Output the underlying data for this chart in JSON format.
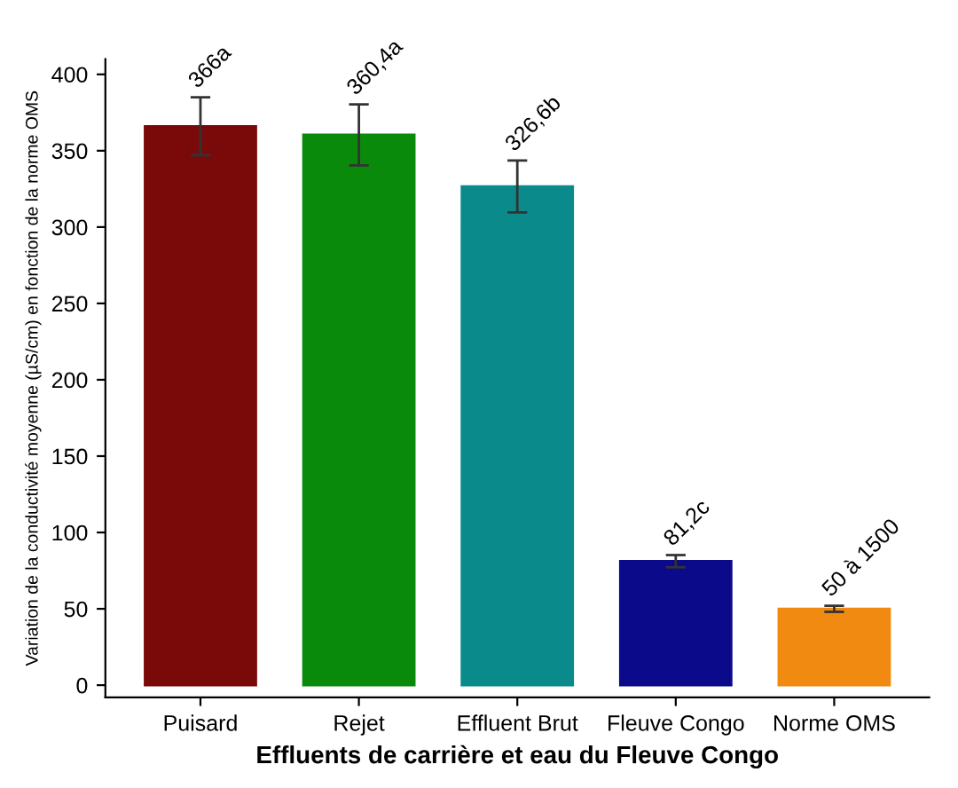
{
  "chart_data": {
    "type": "bar",
    "xlabel": "Effluents de carrière et eau du Fleuve Congo",
    "ylabel": "Variation de la conductivité moyenne (µS/cm) en fonction de la norme OMS",
    "categories": [
      "Puisard",
      "Rejet",
      "Effluent Brut",
      "Fleuve Congo",
      "Norme OMS"
    ],
    "values": [
      366,
      360.4,
      326.6,
      81.2,
      50
    ],
    "errors": [
      19,
      20,
      17,
      4,
      2
    ],
    "value_labels": [
      "366a",
      "360,4a",
      "326,6b",
      "81,2c",
      "50 à 1500"
    ],
    "colors": [
      "#7a0a0a",
      "#0a8a0a",
      "#0a8a8a",
      "#0a0a8a",
      "#f08a10"
    ],
    "ylim": [
      -8,
      410
    ],
    "yticks": [
      0,
      50,
      100,
      150,
      200,
      250,
      300,
      350,
      400
    ],
    "grid": false,
    "legend": false
  }
}
